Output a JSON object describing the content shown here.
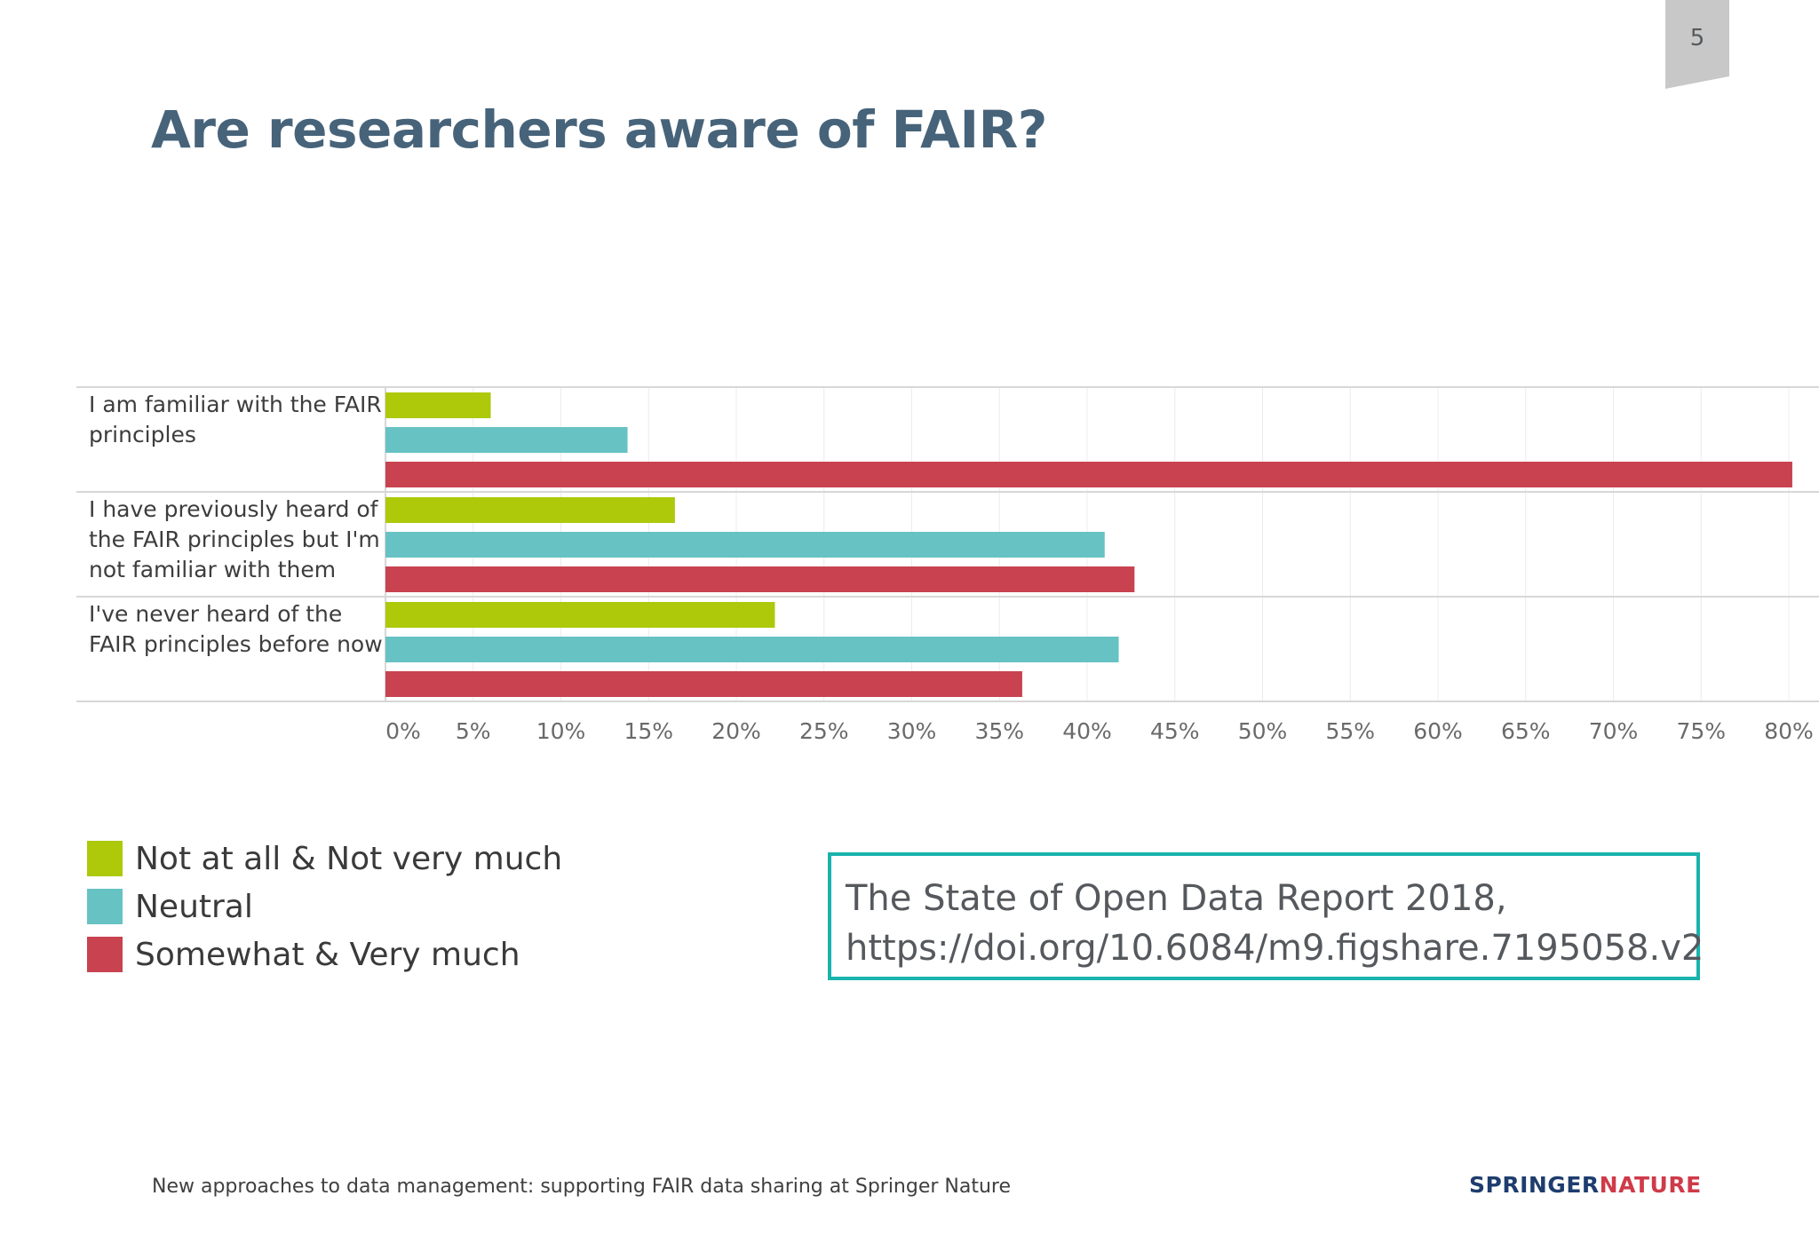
{
  "slide": {
    "page_number": "5",
    "title": "Are researchers aware of FAIR?",
    "footer": "New approaches to data management: supporting FAIR data sharing at Springer Nature",
    "logo": {
      "part1": "SPRINGER",
      "part2": "NATURE"
    },
    "source": {
      "line1": "The State of Open Data Report 2018,",
      "line2": "https://doi.org/10.6084/m9.figshare.7195058.v2"
    }
  },
  "colors": {
    "title": "#46637a",
    "accent_box": "#1ab3ad",
    "page_tab": "#c8c8c8"
  },
  "chart_data": {
    "type": "bar",
    "orientation": "horizontal",
    "categories": [
      [
        "I am familiar with the FAIR",
        "principles"
      ],
      [
        "I have previously heard of",
        "the FAIR principles but I'm",
        "not familiar with them"
      ],
      [
        "I've never heard of the",
        "FAIR principles before now"
      ]
    ],
    "series": [
      {
        "name": "Not at all & Not very much",
        "color": "#adc90a",
        "values": [
          6,
          16.5,
          22.2
        ]
      },
      {
        "name": "Neutral",
        "color": "#67c2c3",
        "values": [
          13.8,
          41,
          41.8
        ]
      },
      {
        "name": "Somewhat & Very much",
        "color": "#c8434f",
        "values": [
          80.2,
          42.7,
          36.3
        ]
      }
    ],
    "x_ticks": [
      "0%",
      "5%",
      "10%",
      "15%",
      "20%",
      "25%",
      "30%",
      "35%",
      "40%",
      "45%",
      "50%",
      "55%",
      "60%",
      "65%",
      "70%",
      "75%",
      "80%"
    ],
    "xlim": [
      0,
      80
    ],
    "grid": true,
    "legend_position": "bottom-left"
  }
}
